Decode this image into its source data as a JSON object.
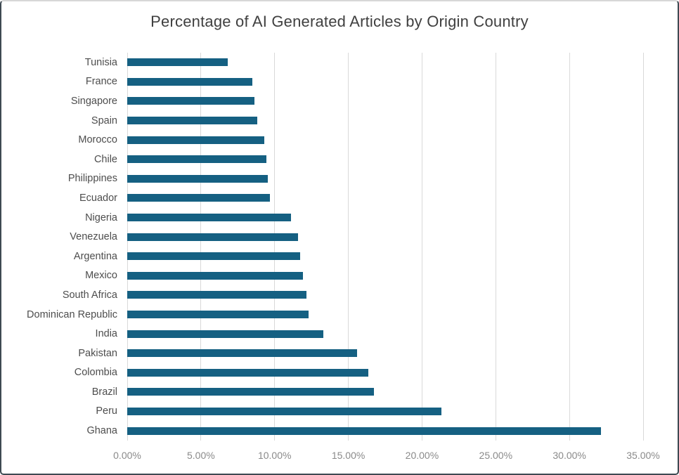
{
  "chart_data": {
    "type": "bar",
    "orientation": "horizontal",
    "title": "Percentage of AI Generated Articles by Origin Country",
    "categories": [
      "Tunisia",
      "France",
      "Singapore",
      "Spain",
      "Morocco",
      "Chile",
      "Philippines",
      "Ecuador",
      "Nigeria",
      "Venezuela",
      "Argentina",
      "Mexico",
      "South Africa",
      "Dominican Republic",
      "India",
      "Pakistan",
      "Colombia",
      "Brazil",
      "Peru",
      "Ghana"
    ],
    "values": [
      6.8,
      8.5,
      8.65,
      8.8,
      9.3,
      9.45,
      9.55,
      9.7,
      11.1,
      11.6,
      11.75,
      11.9,
      12.15,
      12.3,
      13.3,
      15.6,
      16.35,
      16.75,
      21.3,
      32.15
    ],
    "value_unit": "%",
    "xlabel": "",
    "ylabel": "",
    "xlim": [
      0,
      35
    ],
    "x_ticks": [
      {
        "value": 0,
        "label": "0.00%"
      },
      {
        "value": 5,
        "label": "5.00%"
      },
      {
        "value": 10,
        "label": "10.00%"
      },
      {
        "value": 15,
        "label": "15.00%"
      },
      {
        "value": 20,
        "label": "20.00%"
      },
      {
        "value": 25,
        "label": "25.00%"
      },
      {
        "value": 30,
        "label": "30.00%"
      },
      {
        "value": 35,
        "label": "35.00%"
      }
    ],
    "grid": true,
    "legend": false,
    "colors": {
      "bar": "#156082",
      "gridline": "#d9d9d9",
      "title_text": "#404040",
      "category_text": "#4d4d4d",
      "tick_text": "#8a8a8a",
      "border_dark": "#3e4a52"
    }
  }
}
